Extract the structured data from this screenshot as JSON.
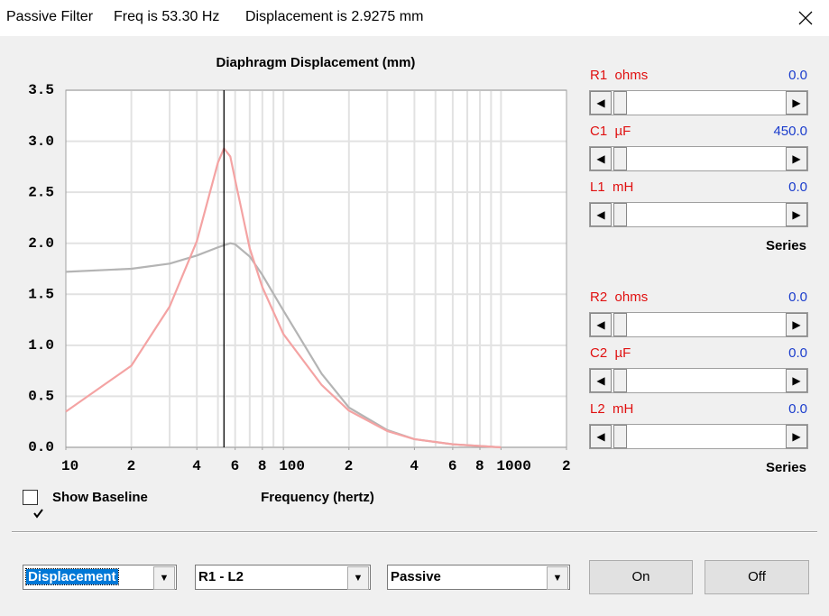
{
  "window": {
    "title": "Passive Filter",
    "freq": "Freq is 53.30 Hz",
    "displacement": "Displacement is 2.9275 mm"
  },
  "chart_data": {
    "type": "line",
    "title": "Diaphragm Displacement (mm)",
    "x_label": "Frequency (hertz)",
    "x": [
      10,
      20,
      30,
      40,
      50,
      53.3,
      57,
      60,
      70,
      80,
      100,
      150,
      200,
      300,
      400,
      600,
      1000
    ],
    "series": [
      {
        "color": "#b4b4b4",
        "values": [
          1.72,
          1.75,
          1.8,
          1.88,
          1.96,
          1.98,
          2.0,
          1.99,
          1.87,
          1.69,
          1.34,
          0.72,
          0.39,
          0.17,
          0.08,
          0.03,
          0.0
        ]
      },
      {
        "color": "#f4a3a3",
        "values": [
          0.35,
          0.8,
          1.38,
          2.02,
          2.79,
          2.93,
          2.85,
          2.62,
          1.95,
          1.57,
          1.11,
          0.61,
          0.36,
          0.16,
          0.08,
          0.03,
          0.0
        ]
      }
    ],
    "cursor": 53.3,
    "log_x": true,
    "xlim": [
      10,
      2000
    ],
    "xticks": [
      10,
      {
        "value": 20,
        "label": "2"
      },
      {
        "value": 40,
        "label": "4"
      },
      {
        "value": 60,
        "label": "6"
      },
      {
        "value": 80,
        "label": "8"
      },
      100,
      {
        "value": 200,
        "label": "2"
      },
      {
        "value": 400,
        "label": "4"
      },
      {
        "value": 600,
        "label": "6"
      },
      {
        "value": 800,
        "label": "8"
      },
      1000,
      {
        "value": 2000,
        "label": "2"
      }
    ],
    "xgrid": [
      20,
      30,
      40,
      50,
      60,
      70,
      80,
      90,
      100,
      200,
      300,
      400,
      500,
      600,
      700,
      800,
      900,
      1000
    ],
    "ylim": [
      0,
      3.5
    ],
    "yticks": [
      {
        "value": 0,
        "label": "0.0"
      },
      0.5,
      {
        "value": 1,
        "label": "1.0"
      },
      1.5,
      {
        "value": 2,
        "label": "2.0"
      },
      2.5,
      {
        "value": 3,
        "label": "3.0"
      },
      3.5
    ],
    "grid": true
  },
  "checkbox": {
    "label": "Show Baseline",
    "checked": true
  },
  "groups": [
    {
      "sliders": [
        {
          "label": "R1  ohms",
          "value": "0.0"
        },
        {
          "label": "C1  µF",
          "value": "450.0"
        },
        {
          "label": "L1  mH",
          "value": "0.0"
        }
      ],
      "footer": "Series"
    },
    {
      "sliders": [
        {
          "label": "R2  ohms",
          "value": "0.0"
        },
        {
          "label": "C2  µF",
          "value": "0.0"
        },
        {
          "label": "L2  mH",
          "value": "0.0"
        }
      ],
      "footer": "Series"
    }
  ],
  "dropdowns": [
    "Displacement",
    "R1 - L2",
    "Passive"
  ],
  "buttons": [
    "On",
    "Off"
  ]
}
